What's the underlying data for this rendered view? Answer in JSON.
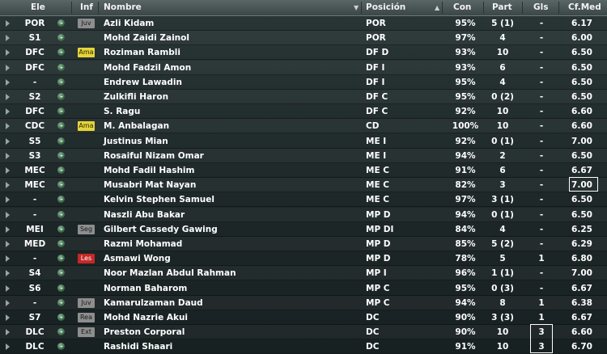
{
  "headers": {
    "pos": "Ele",
    "inf": "Inf",
    "name": "Nombre",
    "role": "Posición",
    "con": "Con",
    "part": "Part",
    "gls": "Gls",
    "cf": "Cf.Med"
  },
  "players": [
    {
      "pos": "POR",
      "inf": "Juv",
      "name": "Azli Kidam",
      "role": "POR",
      "con": "95%",
      "part": "5 (1)",
      "gls": "-",
      "cf": "6.17"
    },
    {
      "pos": "S1",
      "inf": "",
      "name": "Mohd Zaidi Zainol",
      "role": "POR",
      "con": "97%",
      "part": "4",
      "gls": "-",
      "cf": "6.00"
    },
    {
      "pos": "DFC",
      "inf": "Ama",
      "name": "Roziman Rambli",
      "role": "DF D",
      "con": "93%",
      "part": "10",
      "gls": "-",
      "cf": "6.50"
    },
    {
      "pos": "DFC",
      "inf": "",
      "name": "Mohd Fadzil Amon",
      "role": "DF I",
      "con": "93%",
      "part": "6",
      "gls": "-",
      "cf": "6.50"
    },
    {
      "pos": "-",
      "inf": "",
      "name": "Endrew Lawadin",
      "role": "DF I",
      "con": "95%",
      "part": "4",
      "gls": "-",
      "cf": "6.50"
    },
    {
      "pos": "S2",
      "inf": "",
      "name": "Zulkifli Haron",
      "role": "DF C",
      "con": "95%",
      "part": "0 (2)",
      "gls": "-",
      "cf": "6.50"
    },
    {
      "pos": "DFC",
      "inf": "",
      "name": "S. Ragu",
      "role": "DF C",
      "con": "92%",
      "part": "10",
      "gls": "-",
      "cf": "6.60"
    },
    {
      "pos": "CDC",
      "inf": "Ama",
      "name": "M. Anbalagan",
      "role": "CD",
      "con": "100%",
      "part": "10",
      "gls": "-",
      "cf": "6.60"
    },
    {
      "pos": "S5",
      "inf": "",
      "name": "Justinus Mian",
      "role": "ME I",
      "con": "92%",
      "part": "0 (1)",
      "gls": "-",
      "cf": "7.00"
    },
    {
      "pos": "S3",
      "inf": "",
      "name": "Rosaiful Nizam Omar",
      "role": "ME I",
      "con": "94%",
      "part": "2",
      "gls": "-",
      "cf": "6.50"
    },
    {
      "pos": "MEC",
      "inf": "",
      "name": "Mohd Fadil Hashim",
      "role": "ME C",
      "con": "91%",
      "part": "6",
      "gls": "-",
      "cf": "6.67"
    },
    {
      "pos": "MEC",
      "inf": "",
      "name": "Musabri Mat Nayan",
      "role": "ME C",
      "con": "82%",
      "part": "3",
      "gls": "-",
      "cf": "7.00"
    },
    {
      "pos": "-",
      "inf": "",
      "name": "Kelvin Stephen Samuel",
      "role": "ME C",
      "con": "97%",
      "part": "3 (1)",
      "gls": "-",
      "cf": "6.50"
    },
    {
      "pos": "-",
      "inf": "",
      "name": "Naszli Abu Bakar",
      "role": "MP D",
      "con": "94%",
      "part": "0 (1)",
      "gls": "-",
      "cf": "6.50"
    },
    {
      "pos": "MEI",
      "inf": "Seg",
      "name": "Gilbert Cassedy Gawing",
      "role": "MP DI",
      "con": "84%",
      "part": "4",
      "gls": "-",
      "cf": "6.25"
    },
    {
      "pos": "MED",
      "inf": "",
      "name": "Razmi Mohamad",
      "role": "MP D",
      "con": "85%",
      "part": "5 (2)",
      "gls": "-",
      "cf": "6.29"
    },
    {
      "pos": "-",
      "inf": "Les",
      "name": "Asmawi Wong",
      "role": "MP D",
      "con": "78%",
      "part": "5",
      "gls": "1",
      "cf": "6.80"
    },
    {
      "pos": "S4",
      "inf": "",
      "name": "Noor Mazlan Abdul Rahman",
      "role": "MP I",
      "con": "96%",
      "part": "1 (1)",
      "gls": "-",
      "cf": "7.00"
    },
    {
      "pos": "S6",
      "inf": "",
      "name": "Norman Baharom",
      "role": "MP C",
      "con": "95%",
      "part": "0 (3)",
      "gls": "-",
      "cf": "6.67"
    },
    {
      "pos": "-",
      "inf": "Juv",
      "name": "Kamarulzaman Daud",
      "role": "MP C",
      "con": "94%",
      "part": "8",
      "gls": "1",
      "cf": "6.38"
    },
    {
      "pos": "S7",
      "inf": "Rea",
      "name": "Mohd Nazrie Akui",
      "role": "DC",
      "con": "90%",
      "part": "3 (3)",
      "gls": "1",
      "cf": "6.67"
    },
    {
      "pos": "DLC",
      "inf": "Ext",
      "name": "Preston Corporal",
      "role": "DC",
      "con": "90%",
      "part": "10",
      "gls": "3",
      "cf": "6.60"
    },
    {
      "pos": "DLC",
      "inf": "",
      "name": "Rashidi Shaari",
      "role": "DC",
      "con": "91%",
      "part": "10",
      "gls": "3",
      "cf": "6.70"
    }
  ]
}
